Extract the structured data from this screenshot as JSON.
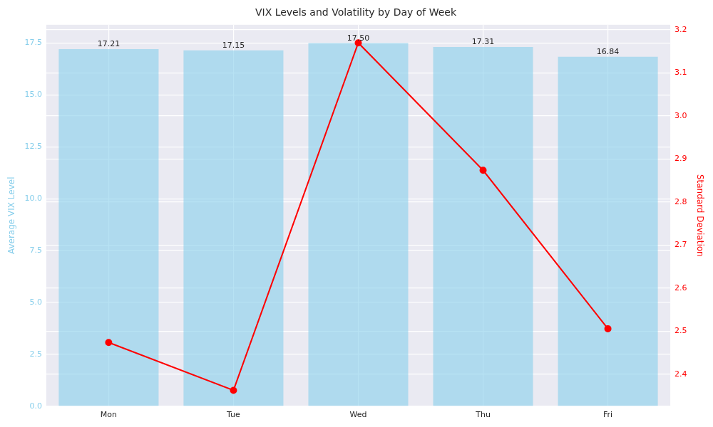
{
  "chart_data": {
    "type": "bar",
    "title": "VIX Levels and Volatility by Day of Week",
    "categories": [
      "Mon",
      "Tue",
      "Wed",
      "Thu",
      "Fri"
    ],
    "ylabel": "Average VIX Level",
    "y2label": "Standard Deviation",
    "series": [
      {
        "type": "bar",
        "color": "#87ceeb",
        "axis": "y",
        "values": [
          17.21,
          17.15,
          17.5,
          17.31,
          16.84
        ],
        "data_labels": true,
        "value_labels": [
          "17.21",
          "17.15",
          "17.50",
          "17.31",
          "16.84"
        ]
      },
      {
        "type": "line",
        "color": "#ff0000",
        "axis": "y2",
        "marker": "circle",
        "line_style": "solid",
        "values": [
          2.474,
          2.363,
          3.17,
          2.874,
          2.506
        ]
      }
    ],
    "ylim": [
      0,
      18.38
    ],
    "yticks": [
      {
        "value": 0,
        "label": "0.0"
      },
      2.5,
      {
        "value": 5,
        "label": "5.0"
      },
      7.5,
      {
        "value": 10,
        "label": "10.0"
      },
      12.5,
      {
        "value": 15,
        "label": "15.0"
      },
      17.5
    ],
    "y2lim": [
      2.326,
      3.212
    ],
    "y2ticks": [
      2.4,
      2.5,
      2.6,
      2.7,
      2.8,
      2.9,
      {
        "value": 3,
        "label": "3.0"
      },
      3.1,
      3.2
    ],
    "grid": true
  }
}
